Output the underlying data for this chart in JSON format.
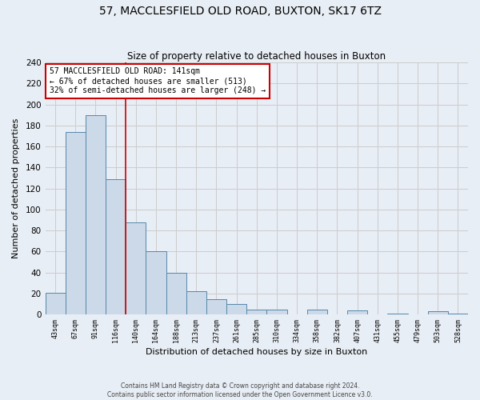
{
  "title": "57, MACCLESFIELD OLD ROAD, BUXTON, SK17 6TZ",
  "subtitle": "Size of property relative to detached houses in Buxton",
  "xlabel": "Distribution of detached houses by size in Buxton",
  "ylabel": "Number of detached properties",
  "footnote1": "Contains HM Land Registry data © Crown copyright and database right 2024.",
  "footnote2": "Contains public sector information licensed under the Open Government Licence v3.0.",
  "bin_labels": [
    "43sqm",
    "67sqm",
    "91sqm",
    "116sqm",
    "140sqm",
    "164sqm",
    "188sqm",
    "213sqm",
    "237sqm",
    "261sqm",
    "285sqm",
    "310sqm",
    "334sqm",
    "358sqm",
    "382sqm",
    "407sqm",
    "431sqm",
    "455sqm",
    "479sqm",
    "503sqm",
    "528sqm"
  ],
  "bar_heights": [
    21,
    174,
    190,
    129,
    88,
    60,
    40,
    22,
    15,
    10,
    5,
    5,
    0,
    5,
    0,
    4,
    0,
    1,
    0,
    3,
    1
  ],
  "bar_color": "#ccd9e8",
  "bar_edge_color": "#5588aa",
  "vline_color": "#cc0000",
  "vline_x_index": 3.5,
  "annotation_line1": "57 MACCLESFIELD OLD ROAD: 141sqm",
  "annotation_line2": "← 67% of detached houses are smaller (513)",
  "annotation_line3": "32% of semi-detached houses are larger (248) →",
  "annotation_box_edge_color": "#cc0000",
  "ylim": [
    0,
    240
  ],
  "yticks": [
    0,
    20,
    40,
    60,
    80,
    100,
    120,
    140,
    160,
    180,
    200,
    220,
    240
  ],
  "grid_color": "#cccccc",
  "bg_color": "#e8eef5"
}
